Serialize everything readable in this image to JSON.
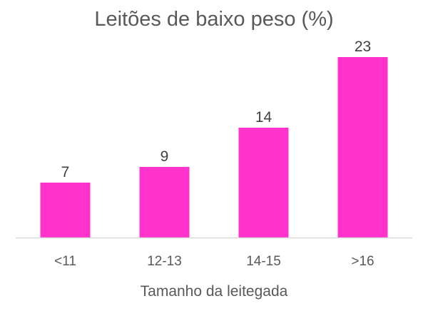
{
  "chart_data": {
    "type": "bar",
    "title": "Leitões de baixo peso (%)",
    "xlabel": "Tamanho da leitegada",
    "ylabel": "",
    "categories": [
      "<11",
      "12-13",
      "14-15",
      ">16"
    ],
    "values": [
      7,
      9,
      14,
      23
    ],
    "data_labels": [
      "7",
      "9",
      "14",
      "23"
    ],
    "ylim": [
      0,
      25
    ],
    "grid": false,
    "legend": "none",
    "bar_color": "#ff33cc",
    "axis_color": "#d9d9d9"
  }
}
